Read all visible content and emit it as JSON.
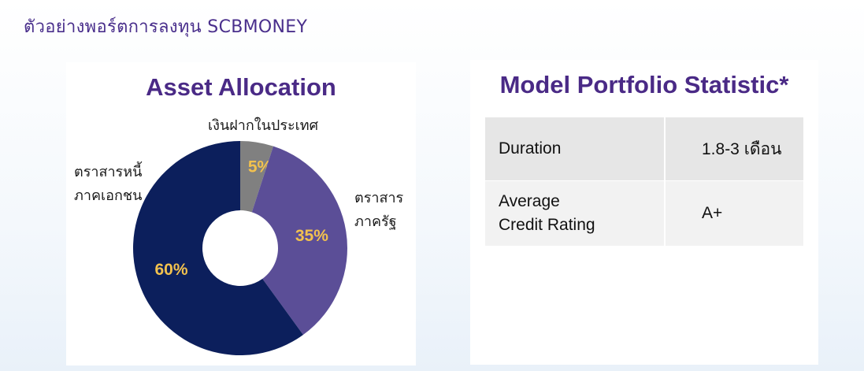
{
  "page_title": "ตัวอย่างพอร์ตการลงทุน SCBMONEY",
  "colors": {
    "title": "#4a2f8c",
    "heading": "#4a2a86",
    "percent_text": "#f2c14e",
    "slice_deposit": "#808080",
    "slice_gov": "#5b4e97",
    "slice_corp": "#0c1f5c"
  },
  "asset_allocation": {
    "heading": "Asset Allocation"
  },
  "chart_data": {
    "type": "pie",
    "title": "Asset Allocation",
    "donut": true,
    "slices": [
      {
        "label": "เงินฝากในประเทศ",
        "label_lines": [
          "เงินฝากในประเทศ"
        ],
        "value": 5,
        "value_label": "5%",
        "color": "#808080"
      },
      {
        "label": "ตราสาร ภาครัฐ",
        "label_lines": [
          "ตราสาร",
          "ภาครัฐ"
        ],
        "value": 35,
        "value_label": "35%",
        "color": "#5b4e97"
      },
      {
        "label": "ตราสารหนี้ ภาคเอกชน",
        "label_lines": [
          "ตราสารหนี้",
          "ภาคเอกชน"
        ],
        "value": 60,
        "value_label": "60%",
        "color": "#0c1f5c"
      }
    ]
  },
  "statistics": {
    "heading": "Model Portfolio Statistic*",
    "rows": [
      {
        "label": [
          "Duration"
        ],
        "value": "1.8-3 เดือน"
      },
      {
        "label": [
          "Average",
          "Credit Rating"
        ],
        "value": "A+"
      }
    ]
  }
}
